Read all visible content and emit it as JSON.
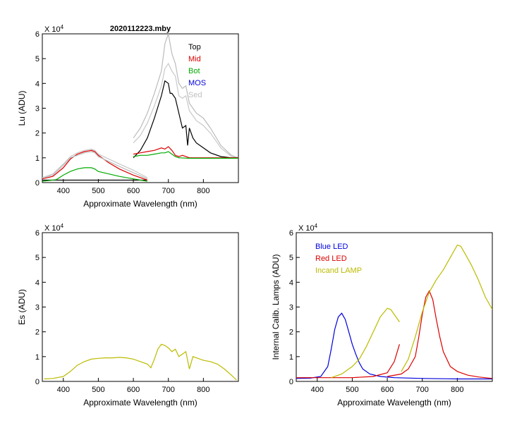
{
  "chart_data": [
    {
      "id": "lu",
      "type": "line",
      "title": "2020112223.mby",
      "xlabel": "Approximate Wavelength (nm)",
      "ylabel": "Lu (ADU)",
      "y_multiplier": "X 10",
      "y_multiplier_exp": "4",
      "xlim": [
        340,
        900
      ],
      "ylim": [
        0,
        6
      ],
      "xticks": [
        400,
        500,
        600,
        700,
        800
      ],
      "yticks": [
        0,
        1,
        2,
        3,
        4,
        5,
        6
      ],
      "legend": [
        "Top",
        "Mid",
        "Bot",
        "MOS",
        "Sed"
      ],
      "legend_colors": [
        "#000000",
        "#dd0000",
        "#00aa00",
        "#0000dd",
        "#c0c0c0"
      ],
      "series": [
        {
          "name": "Top seg1",
          "color": "#000000",
          "x": [
            340,
            380,
            420,
            460,
            500,
            540,
            580,
            600,
            640
          ],
          "y": [
            0.1,
            0.1,
            0.1,
            0.1,
            0.1,
            0.1,
            0.1,
            0.1,
            0.1
          ]
        },
        {
          "name": "Mid seg1",
          "color": "#dd0000",
          "x": [
            340,
            370,
            400,
            420,
            440,
            460,
            480,
            490,
            500,
            530,
            560,
            600,
            640
          ],
          "y": [
            0.15,
            0.25,
            0.6,
            0.95,
            1.15,
            1.25,
            1.3,
            1.25,
            1.1,
            0.8,
            0.55,
            0.3,
            0.1
          ]
        },
        {
          "name": "Bot seg1",
          "color": "#00aa00",
          "x": [
            340,
            380,
            400,
            420,
            440,
            460,
            480,
            490,
            500,
            530,
            560,
            600,
            640
          ],
          "y": [
            0.05,
            0.12,
            0.3,
            0.45,
            0.55,
            0.6,
            0.6,
            0.55,
            0.45,
            0.35,
            0.25,
            0.15,
            0.05
          ]
        },
        {
          "name": "Sed seg1a",
          "color": "#bbbbbb",
          "x": [
            340,
            370,
            400,
            420,
            440,
            460,
            480,
            490,
            500,
            530,
            560,
            600,
            640
          ],
          "y": [
            0.18,
            0.3,
            0.7,
            1.0,
            1.1,
            1.2,
            1.25,
            1.2,
            1.05,
            0.85,
            0.65,
            0.4,
            0.15
          ]
        },
        {
          "name": "Sed seg1b",
          "color": "#c8c8c8",
          "x": [
            340,
            370,
            400,
            420,
            440,
            460,
            480,
            490,
            500,
            530,
            560,
            600,
            640
          ],
          "y": [
            0.2,
            0.35,
            0.75,
            1.05,
            1.2,
            1.3,
            1.35,
            1.3,
            1.15,
            0.95,
            0.75,
            0.5,
            0.2
          ]
        },
        {
          "name": "Sed seg2a",
          "color": "#bbbbbb",
          "x": [
            600,
            620,
            640,
            660,
            680,
            690,
            700,
            710,
            720,
            730,
            740,
            750,
            760,
            770,
            780,
            800,
            820,
            850,
            880,
            900
          ],
          "y": [
            1.8,
            2.2,
            2.8,
            3.6,
            4.5,
            5.6,
            6.0,
            5.2,
            4.8,
            4.0,
            3.8,
            3.9,
            3.2,
            3.0,
            2.8,
            2.6,
            2.2,
            1.5,
            1.1,
            1.0
          ]
        },
        {
          "name": "Sed seg2b",
          "color": "#c8c8c8",
          "x": [
            600,
            620,
            640,
            660,
            680,
            690,
            700,
            710,
            720,
            730,
            740,
            750,
            760,
            770,
            780,
            800,
            820,
            850,
            880,
            900
          ],
          "y": [
            1.6,
            1.9,
            2.4,
            3.1,
            3.9,
            4.6,
            4.8,
            4.5,
            4.3,
            3.5,
            3.4,
            3.5,
            2.9,
            2.7,
            2.5,
            2.3,
            2.0,
            1.4,
            1.05,
            1.0
          ]
        },
        {
          "name": "Top seg2",
          "color": "#000000",
          "x": [
            600,
            620,
            640,
            660,
            680,
            690,
            700,
            705,
            710,
            720,
            730,
            740,
            750,
            755,
            760,
            770,
            780,
            800,
            820,
            850,
            880,
            900
          ],
          "y": [
            1.0,
            1.3,
            1.8,
            2.6,
            3.5,
            4.1,
            4.0,
            3.6,
            3.6,
            3.4,
            2.8,
            2.2,
            2.3,
            1.5,
            2.2,
            1.8,
            1.6,
            1.4,
            1.2,
            1.05,
            1.0,
            1.0
          ]
        },
        {
          "name": "Mid seg2",
          "color": "#dd0000",
          "x": [
            600,
            620,
            640,
            660,
            680,
            690,
            700,
            710,
            720,
            730,
            740,
            760,
            800,
            850,
            900
          ],
          "y": [
            1.15,
            1.2,
            1.25,
            1.3,
            1.4,
            1.35,
            1.45,
            1.3,
            1.1,
            1.05,
            1.1,
            1.0,
            1.0,
            1.0,
            1.0
          ]
        },
        {
          "name": "Bot seg2",
          "color": "#00aa00",
          "x": [
            600,
            620,
            640,
            660,
            680,
            690,
            700,
            710,
            720,
            730,
            760,
            800,
            850,
            900
          ],
          "y": [
            1.05,
            1.1,
            1.1,
            1.15,
            1.2,
            1.2,
            1.25,
            1.15,
            1.05,
            1.0,
            0.98,
            0.98,
            0.98,
            0.98
          ]
        }
      ]
    },
    {
      "id": "es",
      "type": "line",
      "title": "",
      "xlabel": "Approximate Wavelength (nm)",
      "ylabel": "Es  (ADU)",
      "y_multiplier": "X 10",
      "y_multiplier_exp": "4",
      "xlim": [
        340,
        900
      ],
      "ylim": [
        0,
        6
      ],
      "xticks": [
        400,
        500,
        600,
        700,
        800
      ],
      "yticks": [
        0,
        1,
        2,
        3,
        4,
        5,
        6
      ],
      "series": [
        {
          "name": "Es",
          "color": "#bbbb00",
          "x": [
            345,
            370,
            400,
            420,
            440,
            460,
            480,
            500,
            520,
            540,
            560,
            580,
            600,
            620,
            640,
            650,
            660,
            670,
            680,
            690,
            700,
            710,
            720,
            730,
            740,
            750,
            760,
            770,
            780,
            800,
            820,
            840,
            860,
            880,
            895
          ],
          "y": [
            0.1,
            0.12,
            0.2,
            0.4,
            0.65,
            0.8,
            0.9,
            0.93,
            0.95,
            0.95,
            0.97,
            0.95,
            0.9,
            0.8,
            0.7,
            0.55,
            0.9,
            1.3,
            1.5,
            1.45,
            1.35,
            1.2,
            1.3,
            1.0,
            1.1,
            1.2,
            0.5,
            1.0,
            0.95,
            0.85,
            0.8,
            0.7,
            0.5,
            0.25,
            0.05
          ]
        }
      ]
    },
    {
      "id": "lamps",
      "type": "line",
      "title": "",
      "xlabel": "Approximate Wavelength (nm)",
      "ylabel": "Internal Calib. Lamps  (ADU)",
      "y_multiplier": "X 10",
      "y_multiplier_exp": "4",
      "xlim": [
        340,
        900
      ],
      "ylim": [
        0,
        6
      ],
      "xticks": [
        400,
        500,
        600,
        700,
        800
      ],
      "yticks": [
        0,
        1,
        2,
        3,
        4,
        5,
        6
      ],
      "legend": [
        "Blue LED",
        "Red LED",
        "Incand LAMP"
      ],
      "legend_colors": [
        "#0000dd",
        "#dd0000",
        "#bbbb00"
      ],
      "series": [
        {
          "name": "Blue LED",
          "color": "#0000dd",
          "x": [
            340,
            380,
            410,
            430,
            440,
            450,
            460,
            470,
            480,
            490,
            500,
            510,
            520,
            530,
            550,
            580,
            620,
            700,
            800,
            900
          ],
          "y": [
            0.12,
            0.13,
            0.2,
            0.6,
            1.3,
            2.1,
            2.6,
            2.75,
            2.5,
            2.0,
            1.5,
            1.1,
            0.75,
            0.5,
            0.3,
            0.2,
            0.15,
            0.12,
            0.1,
            0.1
          ]
        },
        {
          "name": "Red LED",
          "color": "#dd0000",
          "x": [
            340,
            400,
            500,
            560,
            600,
            620,
            635
          ],
          "y": [
            0.15,
            0.15,
            0.15,
            0.2,
            0.35,
            0.8,
            1.5
          ]
        },
        {
          "name": "Red LED 2",
          "color": "#dd0000",
          "x": [
            600,
            640,
            660,
            680,
            690,
            700,
            710,
            720,
            730,
            740,
            750,
            760,
            780,
            800,
            830,
            860,
            900
          ],
          "y": [
            0.2,
            0.3,
            0.5,
            1.0,
            1.8,
            2.7,
            3.4,
            3.65,
            3.3,
            2.5,
            1.8,
            1.2,
            0.6,
            0.4,
            0.25,
            0.18,
            0.12
          ]
        },
        {
          "name": "Incand LAMP",
          "color": "#bbbb00",
          "x": [
            440,
            470,
            500,
            520,
            540,
            560,
            580,
            600,
            610,
            620,
            635
          ],
          "y": [
            0.15,
            0.3,
            0.6,
            0.9,
            1.4,
            2.0,
            2.6,
            2.95,
            2.9,
            2.7,
            2.4
          ]
        },
        {
          "name": "Incand LAMP 2",
          "color": "#bbbb00",
          "x": [
            640,
            660,
            680,
            700,
            720,
            740,
            760,
            780,
            800,
            810,
            820,
            840,
            860,
            880,
            900
          ],
          "y": [
            0.4,
            0.9,
            1.8,
            2.8,
            3.6,
            4.1,
            4.5,
            5.0,
            5.5,
            5.45,
            5.2,
            4.7,
            4.1,
            3.4,
            2.9
          ]
        }
      ]
    }
  ]
}
